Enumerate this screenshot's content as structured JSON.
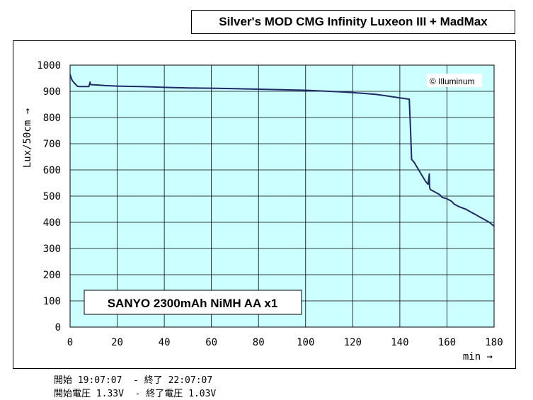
{
  "chart_data": {
    "type": "line",
    "title": "Silver's MOD CMG Infinity Luxeon III + MadMax",
    "xlabel": "min →",
    "ylabel": "Lux/50cm →",
    "xlim": [
      0,
      180
    ],
    "ylim": [
      0,
      1000
    ],
    "x_ticks": [
      "0",
      "20",
      "40",
      "60",
      "80",
      "100",
      "120",
      "140",
      "160",
      "180"
    ],
    "y_ticks": [
      "0",
      "100",
      "200",
      "300",
      "400",
      "500",
      "600",
      "700",
      "800",
      "900",
      "1000"
    ],
    "grid": true,
    "plot_background": "#ccffff",
    "line_color": "#1f2a6b",
    "annotation": "SANYO 2300mAh NiMH AA x1",
    "watermark": "© Illuminum",
    "series": [
      {
        "x": [
          0,
          0.5,
          1,
          2,
          3,
          4,
          5,
          6,
          8,
          8.5,
          8.6,
          9,
          10,
          12,
          15,
          20,
          25,
          30,
          35,
          40,
          50,
          60,
          70,
          80,
          90,
          100,
          105,
          110,
          115,
          120,
          125,
          130,
          135,
          140,
          144,
          144.5,
          145,
          146,
          147,
          148,
          149,
          150,
          151,
          152,
          152.5,
          152.6,
          152.7,
          153,
          155,
          157,
          158,
          160,
          162,
          163,
          165,
          168,
          170,
          172,
          174,
          176,
          178,
          180
        ],
        "y": [
          965,
          950,
          940,
          930,
          920,
          918,
          918,
          918,
          918,
          935,
          928,
          925,
          925,
          924,
          922,
          920,
          919,
          918,
          917,
          915,
          913,
          912,
          910,
          908,
          906,
          904,
          902,
          900,
          898,
          895,
          892,
          888,
          882,
          875,
          870,
          760,
          640,
          630,
          615,
          600,
          585,
          570,
          555,
          545,
          585,
          545,
          530,
          525,
          515,
          505,
          495,
          490,
          480,
          470,
          460,
          450,
          440,
          430,
          420,
          410,
          400,
          385
        ]
      }
    ]
  },
  "footer": {
    "line1": "開始 19:07:07  - 終了 22:07:07",
    "line2": "開始電圧 1.33V  - 終了電圧 1.03V"
  }
}
